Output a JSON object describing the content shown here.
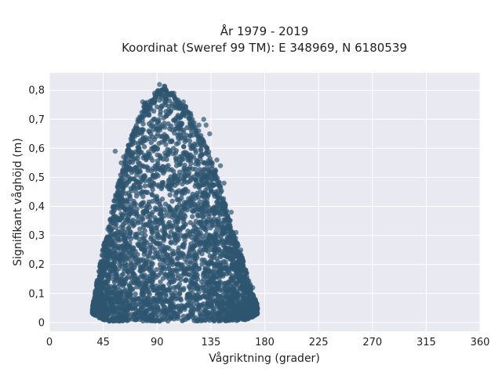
{
  "chart_data": {
    "type": "scatter",
    "title_line1": "År 1979 - 2019",
    "title_line2": "Koordinat (Sweref 99 TM): E 348969, N 6180539",
    "xlabel": "Vågriktning (grader)",
    "ylabel": "Signifikant våghöjd (m)",
    "xlim": [
      0,
      360
    ],
    "ylim": [
      -0.03,
      0.86
    ],
    "x_ticks": [
      0,
      45,
      90,
      135,
      180,
      225,
      270,
      315,
      360
    ],
    "x_tick_labels": [
      "0",
      "45",
      "90",
      "135",
      "180",
      "225",
      "270",
      "315",
      "360"
    ],
    "y_ticks": [
      0,
      0.1,
      0.2,
      0.3,
      0.4,
      0.5,
      0.6,
      0.7,
      0.8
    ],
    "y_tick_labels": [
      "0",
      "0,1",
      "0,2",
      "0,3",
      "0,4",
      "0,5",
      "0,6",
      "0,7",
      "0,8"
    ],
    "grid": true,
    "legend": "none",
    "colors": {
      "marker": "#2f5670",
      "plot_background": "#e9e9f1",
      "grid": "#ffffff"
    },
    "envelope": {
      "x": [
        36,
        40,
        45,
        50,
        55,
        60,
        65,
        70,
        75,
        80,
        85,
        90,
        95,
        100,
        105,
        110,
        115,
        120,
        125,
        130,
        135,
        140,
        145,
        150,
        155,
        160,
        165,
        170,
        174
      ],
      "y_min": [
        0.03,
        0.02,
        0.01,
        0.005,
        0.005,
        0.005,
        0.005,
        0.005,
        0.005,
        0.005,
        0.005,
        0.005,
        0.005,
        0.005,
        0.005,
        0.005,
        0.005,
        0.005,
        0.005,
        0.005,
        0.005,
        0.005,
        0.005,
        0.005,
        0.005,
        0.01,
        0.01,
        0.02,
        0.03
      ],
      "y_max": [
        0.05,
        0.15,
        0.26,
        0.34,
        0.44,
        0.52,
        0.6,
        0.66,
        0.71,
        0.76,
        0.77,
        0.8,
        0.82,
        0.8,
        0.78,
        0.76,
        0.74,
        0.7,
        0.66,
        0.62,
        0.57,
        0.51,
        0.44,
        0.37,
        0.3,
        0.24,
        0.17,
        0.1,
        0.06
      ]
    },
    "outliers": [
      {
        "x": 55,
        "y": 0.59
      },
      {
        "x": 60,
        "y": 0.55
      },
      {
        "x": 62,
        "y": 0.57
      },
      {
        "x": 66,
        "y": 0.61
      },
      {
        "x": 72,
        "y": 0.67
      },
      {
        "x": 74,
        "y": 0.7
      },
      {
        "x": 78,
        "y": 0.76
      },
      {
        "x": 80,
        "y": 0.75
      },
      {
        "x": 88,
        "y": 0.79
      },
      {
        "x": 92,
        "y": 0.82
      },
      {
        "x": 95,
        "y": 0.8
      },
      {
        "x": 104,
        "y": 0.79
      },
      {
        "x": 112,
        "y": 0.76
      },
      {
        "x": 118,
        "y": 0.72
      },
      {
        "x": 125,
        "y": 0.68
      },
      {
        "x": 129,
        "y": 0.7
      },
      {
        "x": 131,
        "y": 0.68
      },
      {
        "x": 134,
        "y": 0.65
      },
      {
        "x": 140,
        "y": 0.56
      },
      {
        "x": 143,
        "y": 0.54
      },
      {
        "x": 146,
        "y": 0.48
      },
      {
        "x": 152,
        "y": 0.38
      },
      {
        "x": 156,
        "y": 0.31
      },
      {
        "x": 160,
        "y": 0.25
      },
      {
        "x": 165,
        "y": 0.17
      },
      {
        "x": 170,
        "y": 0.12
      },
      {
        "x": 172,
        "y": 0.08
      },
      {
        "x": 38,
        "y": 0.08
      },
      {
        "x": 41,
        "y": 0.13
      },
      {
        "x": 48,
        "y": 0.24
      },
      {
        "x": 52,
        "y": 0.38
      },
      {
        "x": 57,
        "y": 0.47
      }
    ]
  }
}
